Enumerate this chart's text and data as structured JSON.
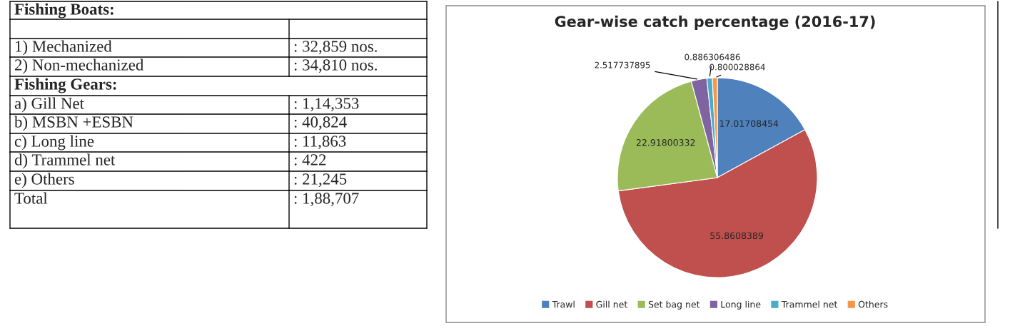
{
  "chart_data": [
    {
      "type": "other",
      "annotations": [
        "Fishing Boats:",
        "1) Mechanized",
        ": 32,859 nos.",
        "2) Non-mechanized",
        ": 34,810 nos.",
        "Fishing Gears:",
        "a) Gill Net",
        ": 1,14,353",
        "b) MSBN +ESBN",
        ": 40,824",
        "c) Long line",
        ": 11,863",
        "d) Trammel net",
        ": 422",
        "e) Others",
        ": 21,245",
        "Total",
        ": 1,88,707"
      ]
    },
    {
      "type": "pie",
      "title": "Gear-wise catch percentage (2016-17)",
      "categories": [
        "Trawl",
        "Gill net",
        "Set bag net",
        "Long line",
        "Trammel net",
        "Others"
      ],
      "values": [
        17.01708454,
        55.8608389,
        22.91800332,
        2.517737895,
        0.886306486,
        0.800028864
      ],
      "colors": [
        "#4f81bd",
        "#c0504d",
        "#9bbb59",
        "#8064a2",
        "#4bacc6",
        "#f79646"
      ],
      "data_labels": true,
      "legend": "bottom"
    }
  ]
}
